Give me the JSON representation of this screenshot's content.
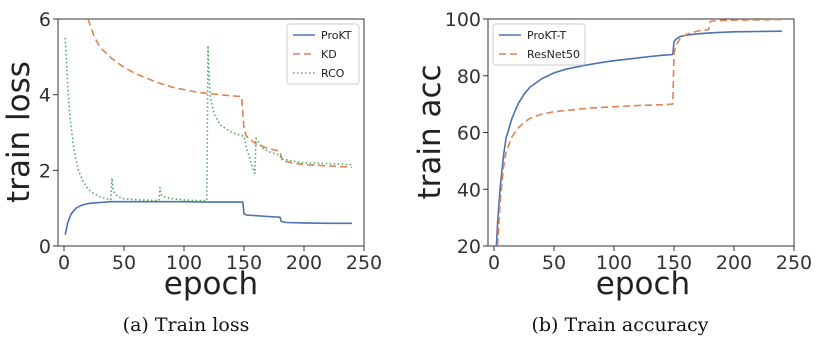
{
  "chart_data": [
    {
      "id": "loss",
      "type": "line",
      "caption": "(a) Train loss",
      "xlabel": "epoch",
      "ylabel": "train loss",
      "xlim": [
        -5,
        250
      ],
      "ylim": [
        0,
        6
      ],
      "xticks": [
        0,
        50,
        100,
        150,
        200,
        250
      ],
      "yticks": [
        0,
        2,
        4,
        6
      ],
      "legend": "top-right",
      "series": [
        {
          "name": "ProKT",
          "color": "#4c72b0",
          "dash": "solid",
          "x": [
            1,
            3,
            6,
            10,
            15,
            20,
            25,
            30,
            35,
            40,
            50,
            60,
            80,
            100,
            120,
            140,
            149,
            150,
            152,
            160,
            170,
            180,
            181,
            185,
            200,
            220,
            240
          ],
          "y": [
            0.3,
            0.6,
            0.85,
            1.0,
            1.08,
            1.12,
            1.14,
            1.15,
            1.16,
            1.17,
            1.17,
            1.17,
            1.17,
            1.17,
            1.16,
            1.16,
            1.16,
            0.85,
            0.82,
            0.8,
            0.78,
            0.76,
            0.65,
            0.62,
            0.61,
            0.6,
            0.6
          ]
        },
        {
          "name": "KD",
          "color": "#dd8452",
          "dash": "dashed",
          "x": [
            20,
            25,
            30,
            40,
            50,
            60,
            70,
            80,
            90,
            100,
            110,
            120,
            130,
            140,
            148,
            150,
            152,
            155,
            160,
            170,
            180,
            182,
            190,
            200,
            220,
            240
          ],
          "y": [
            6.0,
            5.55,
            5.25,
            4.95,
            4.72,
            4.55,
            4.42,
            4.3,
            4.2,
            4.13,
            4.07,
            4.03,
            4.0,
            3.97,
            3.95,
            3.1,
            2.9,
            2.82,
            2.7,
            2.58,
            2.5,
            2.25,
            2.2,
            2.15,
            2.12,
            2.08
          ]
        },
        {
          "name": "RCO",
          "color": "#55a868",
          "dash": "dotted",
          "x": [
            1,
            3,
            5,
            8,
            12,
            16,
            20,
            25,
            30,
            35,
            39,
            40,
            41,
            45,
            50,
            60,
            70,
            79,
            80,
            81,
            85,
            90,
            100,
            110,
            119,
            120,
            121,
            122,
            125,
            130,
            140,
            145,
            150,
            152,
            155,
            158,
            159,
            160,
            165,
            170,
            180,
            181,
            190,
            200,
            220,
            240
          ],
          "y": [
            5.5,
            4.3,
            3.4,
            2.6,
            2.0,
            1.7,
            1.5,
            1.38,
            1.3,
            1.25,
            1.22,
            1.8,
            1.45,
            1.3,
            1.25,
            1.22,
            1.21,
            1.2,
            1.55,
            1.35,
            1.28,
            1.25,
            1.22,
            1.2,
            1.2,
            5.3,
            4.4,
            3.9,
            3.5,
            3.2,
            3.0,
            2.95,
            2.9,
            2.6,
            2.3,
            2.0,
            1.92,
            2.85,
            2.6,
            2.5,
            2.4,
            2.3,
            2.25,
            2.2,
            2.18,
            2.15
          ]
        }
      ]
    },
    {
      "id": "acc",
      "type": "line",
      "caption": "(b) Train accuracy",
      "xlabel": "epoch",
      "ylabel": "train acc",
      "xlim": [
        -5,
        250
      ],
      "ylim": [
        20,
        100
      ],
      "xticks": [
        0,
        50,
        100,
        150,
        200,
        250
      ],
      "yticks": [
        20,
        40,
        60,
        80,
        100
      ],
      "legend": "top-left",
      "series": [
        {
          "name": "ProKT-T",
          "color": "#4c72b0",
          "dash": "solid",
          "x": [
            2,
            3,
            5,
            8,
            10,
            15,
            20,
            25,
            30,
            40,
            50,
            60,
            70,
            80,
            90,
            100,
            110,
            120,
            130,
            140,
            149,
            150,
            152,
            155,
            160,
            170,
            180,
            190,
            200,
            220,
            240
          ],
          "y": [
            20,
            28,
            40,
            52,
            58,
            65,
            70,
            73.5,
            76,
            79,
            81,
            82.3,
            83.2,
            84,
            84.7,
            85.3,
            85.8,
            86.3,
            86.8,
            87.2,
            87.5,
            92,
            93,
            93.8,
            94.3,
            94.8,
            95.1,
            95.3,
            95.5,
            95.6,
            95.7
          ]
        },
        {
          "name": "ResNet50",
          "color": "#dd8452",
          "dash": "dashed",
          "x": [
            3,
            5,
            8,
            10,
            15,
            20,
            25,
            30,
            40,
            50,
            60,
            80,
            100,
            120,
            140,
            149,
            150,
            152,
            155,
            160,
            165,
            170,
            179,
            180,
            182,
            190,
            200,
            220,
            240
          ],
          "y": [
            20,
            35,
            48,
            53,
            58.5,
            61.5,
            63.5,
            65,
            66.5,
            67.3,
            67.8,
            68.6,
            69.1,
            69.5,
            69.8,
            70,
            88,
            91,
            93,
            94.5,
            95.2,
            95.8,
            96.3,
            99,
            99.3,
            99.5,
            99.6,
            99.7,
            99.8
          ]
        }
      ]
    }
  ]
}
